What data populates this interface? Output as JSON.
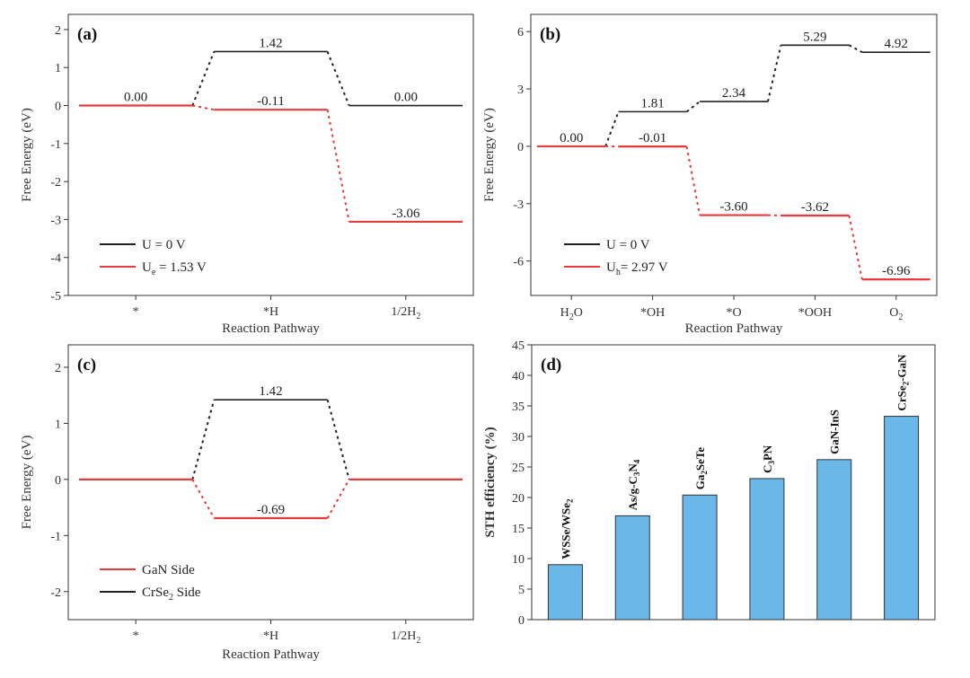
{
  "chart_data": [
    {
      "id": "a",
      "panel_label": "(a)",
      "type": "line",
      "ylabel": "Free Energy (eV)",
      "xlabel": "Reaction Pathway",
      "ylim": [
        -5,
        2.4
      ],
      "yticks": [
        "2",
        "1",
        "0",
        "-1",
        "-2",
        "-3",
        "-4",
        "-5"
      ],
      "categories": [
        "*",
        "*H",
        "1/2H₂"
      ],
      "series": [
        {
          "name": "U = 0 V",
          "color": "#222222",
          "values": [
            0.0,
            1.42,
            0.0
          ],
          "labels": [
            "0.00",
            "1.42",
            "0.00"
          ]
        },
        {
          "name": "Ue = 1.53 V",
          "color": "#e63b3b",
          "values": [
            0.0,
            -0.11,
            -3.06
          ],
          "labels": [
            "",
            "-0.11",
            "-3.06"
          ]
        }
      ],
      "legend": [
        {
          "text": "U = 0 V",
          "color": "#222222"
        },
        {
          "text": "U",
          "sub": "e",
          "text2": " = 1.53 V",
          "color": "#e63b3b"
        }
      ],
      "legend_position": "bottom-left"
    },
    {
      "id": "b",
      "panel_label": "(b)",
      "type": "line",
      "ylabel": "Free Energy (eV)",
      "xlabel": "Reaction Pathway",
      "ylim": [
        -7.8,
        6.9
      ],
      "yticks": [
        "6",
        "3",
        "0",
        "-3",
        "-6"
      ],
      "categories": [
        "H₂O",
        "*OH",
        "*O",
        "*OOH",
        "O₂"
      ],
      "series": [
        {
          "name": "U = 0 V",
          "color": "#222222",
          "values": [
            0.0,
            1.81,
            2.34,
            5.29,
            4.92
          ],
          "labels": [
            "0.00",
            "1.81",
            "2.34",
            "5.29",
            "4.92"
          ]
        },
        {
          "name": "Uh = 2.97 V",
          "color": "#e63b3b",
          "values": [
            0.0,
            -0.01,
            -3.6,
            -3.62,
            -6.96
          ],
          "labels": [
            "",
            "-0.01",
            "-3.60",
            "-3.62",
            "-6.96"
          ]
        }
      ],
      "legend": [
        {
          "text": "U = 0 V",
          "color": "#222222"
        },
        {
          "text": "U",
          "sub": "h",
          "text2": "= 2.97 V",
          "color": "#e63b3b"
        }
      ],
      "legend_position": "bottom-left"
    },
    {
      "id": "c",
      "panel_label": "(c)",
      "type": "line",
      "ylabel": "Free Energy (eV)",
      "xlabel": "Reaction Pathway",
      "ylim": [
        -2.5,
        2.4
      ],
      "yticks": [
        "2",
        "1",
        "0",
        "-1",
        "-2"
      ],
      "categories": [
        "*",
        "*H",
        "1/2H₂"
      ],
      "series": [
        {
          "name": "CrSe₂ Side",
          "color": "#222222",
          "values": [
            0.0,
            1.42,
            0.0
          ],
          "labels": [
            "",
            "1.42",
            ""
          ]
        },
        {
          "name": "GaN Side",
          "color": "#e63b3b",
          "values": [
            0.0,
            -0.69,
            0.0
          ],
          "labels": [
            "",
            "-0.69",
            ""
          ]
        }
      ],
      "legend": [
        {
          "text": "GaN Side",
          "color": "#e63b3b"
        },
        {
          "text": "CrSe₂ Side",
          "color": "#222222"
        }
      ],
      "legend_position": "bottom-left"
    },
    {
      "id": "d",
      "panel_label": "(d)",
      "type": "bar",
      "ylabel": "STH efficiency (%)",
      "xlabel": "",
      "ylim": [
        0,
        45
      ],
      "yticks": [
        "0",
        "5",
        "10",
        "15",
        "20",
        "25",
        "30",
        "35",
        "40",
        "45"
      ],
      "bar_color": "#6ab8ea",
      "categories": [
        {
          "main": "WSSe/WSe",
          "sub": "2",
          "tail": ""
        },
        {
          "main": "As/g-C",
          "sub": "3",
          "tail": "N",
          "sub2": "4"
        },
        {
          "main": "Ga",
          "sub": "2",
          "tail": "SeTe"
        },
        {
          "main": "C",
          "sub": "3",
          "tail": "PN"
        },
        {
          "main": "GaN-InS",
          "sub": "",
          "tail": ""
        },
        {
          "main": "CrSe",
          "sub": "2",
          "tail": "-GaN"
        }
      ],
      "values": [
        9.0,
        17.0,
        20.4,
        23.1,
        26.2,
        33.3
      ]
    }
  ]
}
